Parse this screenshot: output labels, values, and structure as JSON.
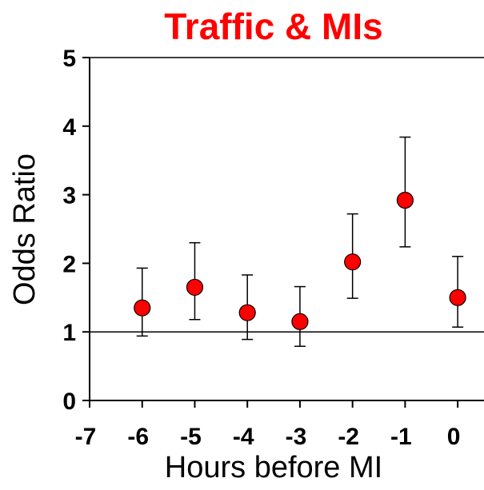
{
  "chart_data": {
    "type": "scatter",
    "title": "Traffic & MIs",
    "title_color": "#ff0000",
    "xlabel": "Hours before MI",
    "ylabel": "Odds Ratio",
    "xlim": [
      -7,
      0.5
    ],
    "ylim": [
      0,
      5
    ],
    "x_ticks": [
      -7,
      -6,
      -5,
      -4,
      -3,
      -2,
      -1,
      0
    ],
    "y_ticks": [
      0,
      1,
      2,
      3,
      4,
      5
    ],
    "x_tick_labels": [
      "-7",
      "-6",
      "-5",
      "-4",
      "-3",
      "-2",
      "-1",
      "0"
    ],
    "y_tick_labels": [
      "0",
      "1",
      "2",
      "3",
      "4",
      "5"
    ],
    "reference_line_y": 1,
    "marker_color": "#ff0000",
    "grid": false,
    "points": [
      {
        "x": -6,
        "y": 1.35,
        "lower": 0.94,
        "upper": 1.93
      },
      {
        "x": -5,
        "y": 1.65,
        "lower": 1.18,
        "upper": 2.3
      },
      {
        "x": -4,
        "y": 1.28,
        "lower": 0.89,
        "upper": 1.83
      },
      {
        "x": -3,
        "y": 1.15,
        "lower": 0.79,
        "upper": 1.66
      },
      {
        "x": -2,
        "y": 2.02,
        "lower": 1.49,
        "upper": 2.72
      },
      {
        "x": -1,
        "y": 2.92,
        "lower": 2.24,
        "upper": 3.84
      },
      {
        "x": 0,
        "y": 1.5,
        "lower": 1.07,
        "upper": 2.1
      }
    ]
  }
}
